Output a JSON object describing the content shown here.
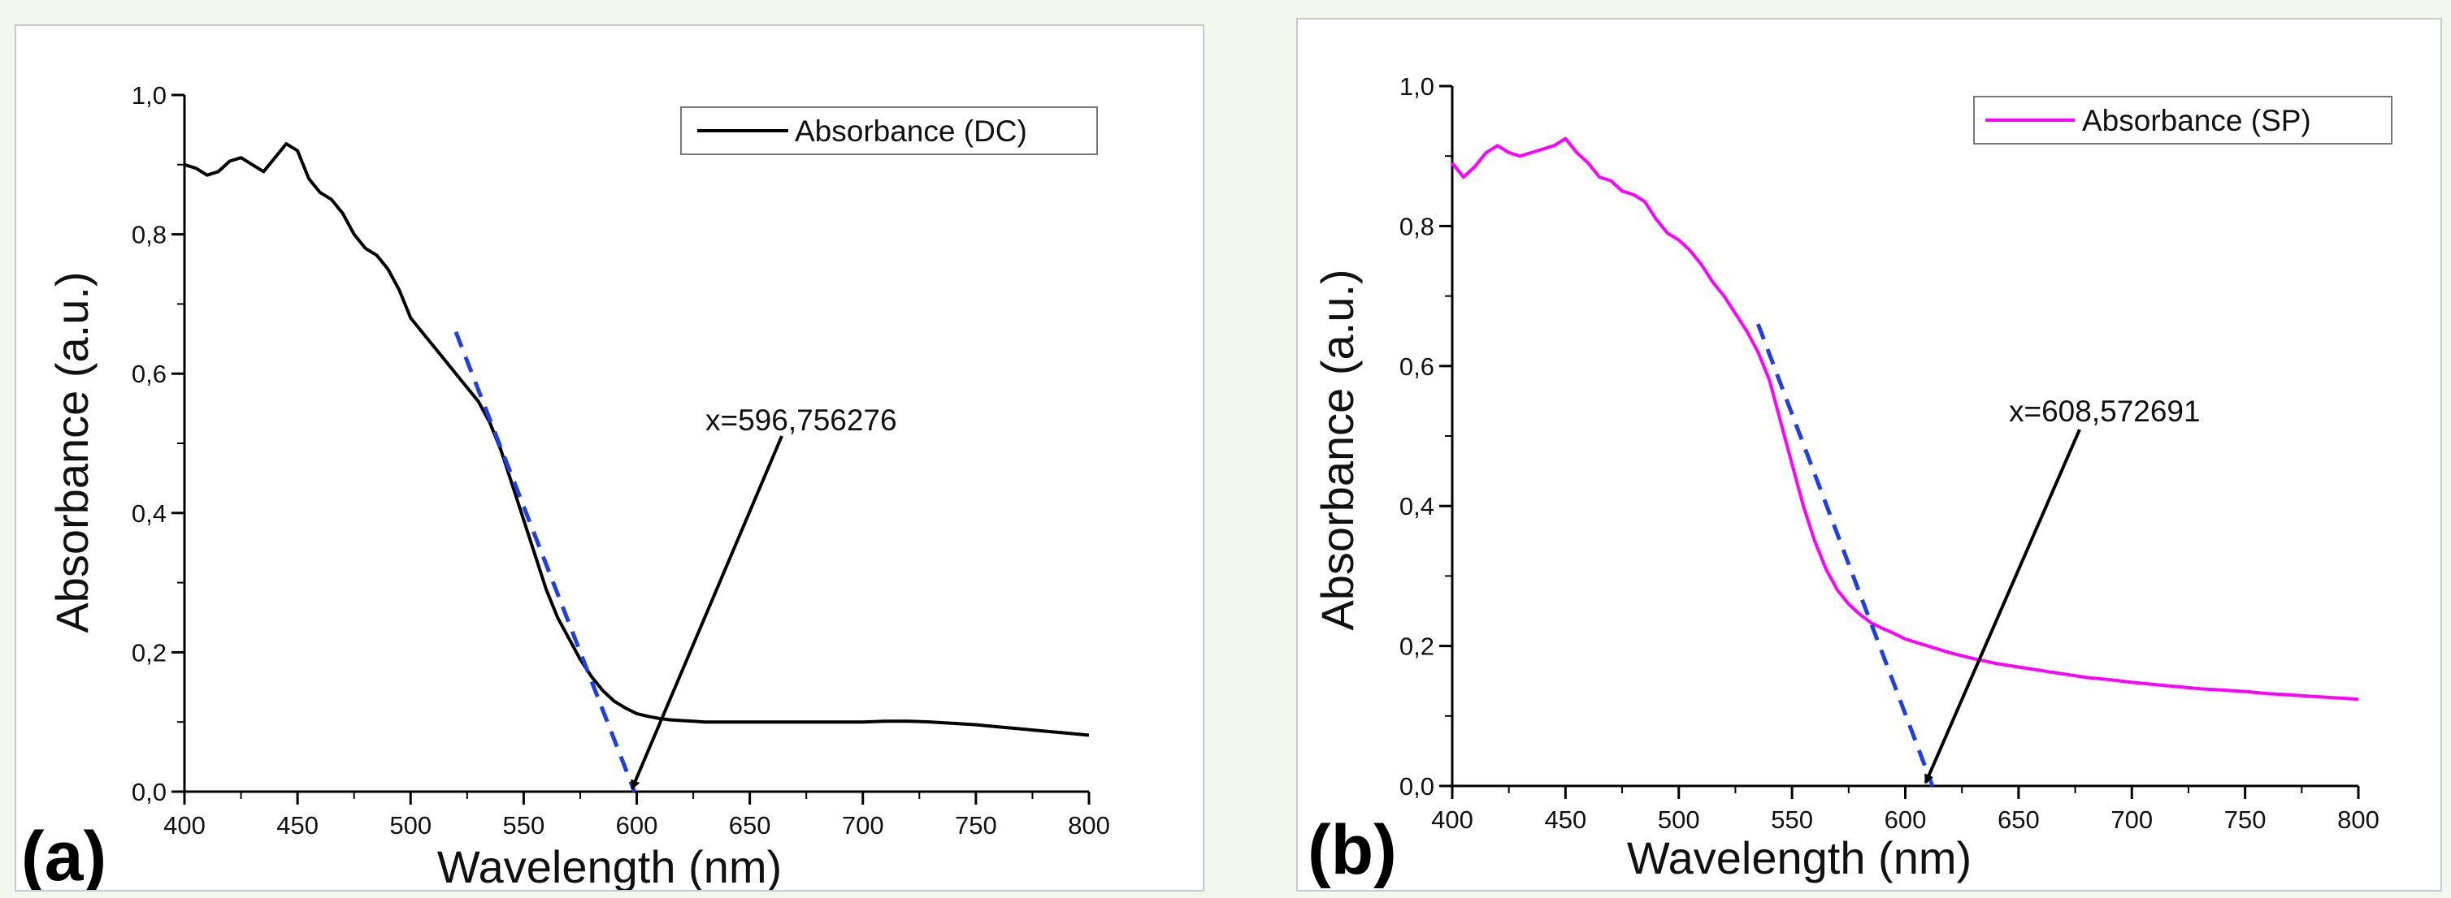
{
  "chart_data": [
    {
      "type": "line",
      "panel_label": "(a)",
      "xlabel": "Wavelength (nm)",
      "ylabel": "Absorbance (a.u.)",
      "xlim": [
        400,
        800
      ],
      "ylim": [
        0.0,
        1.0
      ],
      "x_ticks": [
        "400",
        "450",
        "500",
        "550",
        "600",
        "650",
        "700",
        "750",
        "800"
      ],
      "y_ticks": [
        "0,0",
        "0,2",
        "0,4",
        "0,6",
        "0,8",
        "1,0"
      ],
      "legend_position": "top-right",
      "series": [
        {
          "name": "Absorbance (DC)",
          "color": "#000000",
          "x": [
            400,
            405,
            410,
            415,
            420,
            425,
            430,
            435,
            440,
            445,
            450,
            455,
            460,
            465,
            470,
            475,
            480,
            485,
            490,
            495,
            500,
            505,
            510,
            515,
            520,
            525,
            530,
            535,
            540,
            545,
            550,
            555,
            560,
            565,
            570,
            575,
            580,
            585,
            590,
            595,
            600,
            605,
            610,
            615,
            620,
            625,
            630,
            640,
            650,
            660,
            670,
            680,
            690,
            700,
            710,
            720,
            730,
            740,
            750,
            760,
            770,
            780,
            790,
            800
          ],
          "y": [
            0.9,
            0.895,
            0.885,
            0.89,
            0.905,
            0.91,
            0.9,
            0.89,
            0.91,
            0.93,
            0.92,
            0.88,
            0.86,
            0.85,
            0.83,
            0.8,
            0.78,
            0.77,
            0.75,
            0.72,
            0.68,
            0.66,
            0.64,
            0.62,
            0.6,
            0.58,
            0.56,
            0.53,
            0.49,
            0.44,
            0.39,
            0.34,
            0.29,
            0.25,
            0.22,
            0.19,
            0.165,
            0.145,
            0.13,
            0.12,
            0.112,
            0.108,
            0.105,
            0.103,
            0.102,
            0.101,
            0.1,
            0.1,
            0.1,
            0.1,
            0.1,
            0.1,
            0.1,
            0.1,
            0.101,
            0.101,
            0.1,
            0.098,
            0.096,
            0.093,
            0.09,
            0.087,
            0.084,
            0.081
          ]
        }
      ],
      "tangent": {
        "color": "#1f3fe0",
        "x": [
          520,
          599
        ],
        "y": [
          0.66,
          0.0
        ]
      },
      "annotation": {
        "text": "x=596,756276",
        "point": [
          598,
          0.0
        ]
      }
    },
    {
      "type": "line",
      "panel_label": "(b)",
      "xlabel": "Wavelength (nm)",
      "ylabel": "Absorbance (a.u.)",
      "xlim": [
        400,
        800
      ],
      "ylim": [
        0.0,
        1.0
      ],
      "x_ticks": [
        "400",
        "450",
        "500",
        "550",
        "600",
        "650",
        "700",
        "750",
        "800"
      ],
      "y_ticks": [
        "0,0",
        "0,2",
        "0,4",
        "0,6",
        "0,8",
        "1,0"
      ],
      "legend_position": "top-right",
      "series": [
        {
          "name": "Absorbance (SP)",
          "color": "#ff00ff",
          "x": [
            400,
            405,
            410,
            415,
            420,
            425,
            430,
            435,
            440,
            445,
            450,
            455,
            460,
            465,
            470,
            475,
            480,
            485,
            490,
            495,
            500,
            505,
            510,
            515,
            520,
            525,
            530,
            535,
            540,
            545,
            550,
            555,
            560,
            565,
            570,
            575,
            580,
            585,
            590,
            595,
            600,
            610,
            620,
            630,
            640,
            650,
            660,
            670,
            680,
            690,
            700,
            710,
            720,
            730,
            740,
            750,
            760,
            770,
            780,
            790,
            800
          ],
          "y": [
            0.89,
            0.87,
            0.885,
            0.905,
            0.915,
            0.905,
            0.9,
            0.905,
            0.91,
            0.915,
            0.925,
            0.905,
            0.89,
            0.87,
            0.865,
            0.85,
            0.845,
            0.835,
            0.81,
            0.79,
            0.78,
            0.765,
            0.745,
            0.72,
            0.7,
            0.675,
            0.65,
            0.62,
            0.58,
            0.52,
            0.46,
            0.4,
            0.35,
            0.31,
            0.28,
            0.26,
            0.245,
            0.233,
            0.225,
            0.218,
            0.21,
            0.2,
            0.19,
            0.182,
            0.175,
            0.17,
            0.165,
            0.16,
            0.155,
            0.152,
            0.148,
            0.145,
            0.142,
            0.139,
            0.137,
            0.135,
            0.132,
            0.13,
            0.128,
            0.126,
            0.124
          ]
        }
      ],
      "tangent": {
        "color": "#1f3fe0",
        "x": [
          535,
          612
        ],
        "y": [
          0.66,
          0.0
        ]
      },
      "annotation": {
        "text": "x=608,572691",
        "point": [
          609,
          0.0
        ]
      }
    }
  ]
}
